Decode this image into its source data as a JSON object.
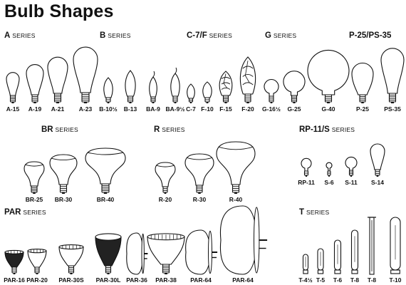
{
  "title": "Bulb Shapes",
  "series": [
    {
      "code": "A",
      "word": "SERIES",
      "bulbs": [
        {
          "name": "A-15",
          "icon": "a-bulb-icon"
        },
        {
          "name": "A-19",
          "icon": "a-bulb-icon"
        },
        {
          "name": "A-21",
          "icon": "a-bulb-icon"
        },
        {
          "name": "A-23",
          "icon": "a-bulb-icon"
        }
      ]
    },
    {
      "code": "B",
      "word": "SERIES",
      "bulbs": [
        {
          "name": "B-10½",
          "icon": "b-bulb-icon"
        },
        {
          "name": "B-13",
          "icon": "b-bulb-icon"
        },
        {
          "name": "BA-9",
          "icon": "ba-flame-bulb-icon"
        },
        {
          "name": "BA-9½",
          "icon": "ba-flame-bulb-icon"
        }
      ]
    },
    {
      "code": "C-7/F",
      "word": "SERIES",
      "bulbs": [
        {
          "name": "C-7",
          "icon": "c-bulb-icon"
        },
        {
          "name": "F-10",
          "icon": "flame-bulb-icon"
        },
        {
          "name": "F-15",
          "icon": "flame-bulb-icon"
        },
        {
          "name": "F-20",
          "icon": "flame-bulb-icon"
        }
      ]
    },
    {
      "code": "G",
      "word": "SERIES",
      "bulbs": [
        {
          "name": "G-16½",
          "icon": "globe-bulb-icon"
        },
        {
          "name": "G-25",
          "icon": "globe-bulb-icon"
        },
        {
          "name": "G-40",
          "icon": "globe-bulb-icon"
        }
      ]
    },
    {
      "code": "P-25/PS-35",
      "word": "",
      "bulbs": [
        {
          "name": "P-25",
          "icon": "p-bulb-icon"
        },
        {
          "name": "PS-35",
          "icon": "ps-bulb-icon"
        }
      ]
    },
    {
      "code": "BR",
      "word": "SERIES",
      "bulbs": [
        {
          "name": "BR-25",
          "icon": "br-reflector-icon"
        },
        {
          "name": "BR-30",
          "icon": "br-reflector-icon"
        },
        {
          "name": "BR-40",
          "icon": "br-reflector-icon"
        }
      ]
    },
    {
      "code": "R",
      "word": "SERIES",
      "bulbs": [
        {
          "name": "R-20",
          "icon": "r-reflector-icon"
        },
        {
          "name": "R-30",
          "icon": "r-reflector-icon"
        },
        {
          "name": "R-40",
          "icon": "r-reflector-icon"
        }
      ]
    },
    {
      "code": "RP-11/S",
      "word": "SERIES",
      "bulbs": [
        {
          "name": "RP-11",
          "icon": "rp-bulb-icon"
        },
        {
          "name": "S-6",
          "icon": "s-bulb-icon"
        },
        {
          "name": "S-11",
          "icon": "s-bulb-icon"
        },
        {
          "name": "S-14",
          "icon": "s-bulb-icon"
        }
      ]
    },
    {
      "code": "PAR",
      "word": "SERIES",
      "bulbs": [
        {
          "name": "PAR-16",
          "icon": "par-lamp-icon"
        },
        {
          "name": "PAR-20",
          "icon": "par-lamp-icon"
        },
        {
          "name": "PAR-30S",
          "icon": "par-lamp-icon"
        },
        {
          "name": "PAR-30L",
          "icon": "par-lamp-icon"
        },
        {
          "name": "PAR-36",
          "icon": "par-sealed-beam-icon"
        },
        {
          "name": "PAR-38",
          "icon": "par-lamp-icon"
        },
        {
          "name": "PAR-64",
          "icon": "par-sealed-beam-icon"
        },
        {
          "name": "PAR-64",
          "icon": "par-sealed-beam-icon"
        }
      ]
    },
    {
      "code": "T",
      "word": "SERIES",
      "bulbs": [
        {
          "name": "T-4½",
          "icon": "tubular-bulb-icon"
        },
        {
          "name": "T-5",
          "icon": "tubular-bulb-icon"
        },
        {
          "name": "T-6",
          "icon": "tubular-bulb-icon"
        },
        {
          "name": "T-8",
          "icon": "tubular-bulb-icon"
        },
        {
          "name": "T-8",
          "icon": "tubular-bulb-icon"
        },
        {
          "name": "T-10",
          "icon": "tubular-bulb-icon"
        }
      ]
    }
  ]
}
